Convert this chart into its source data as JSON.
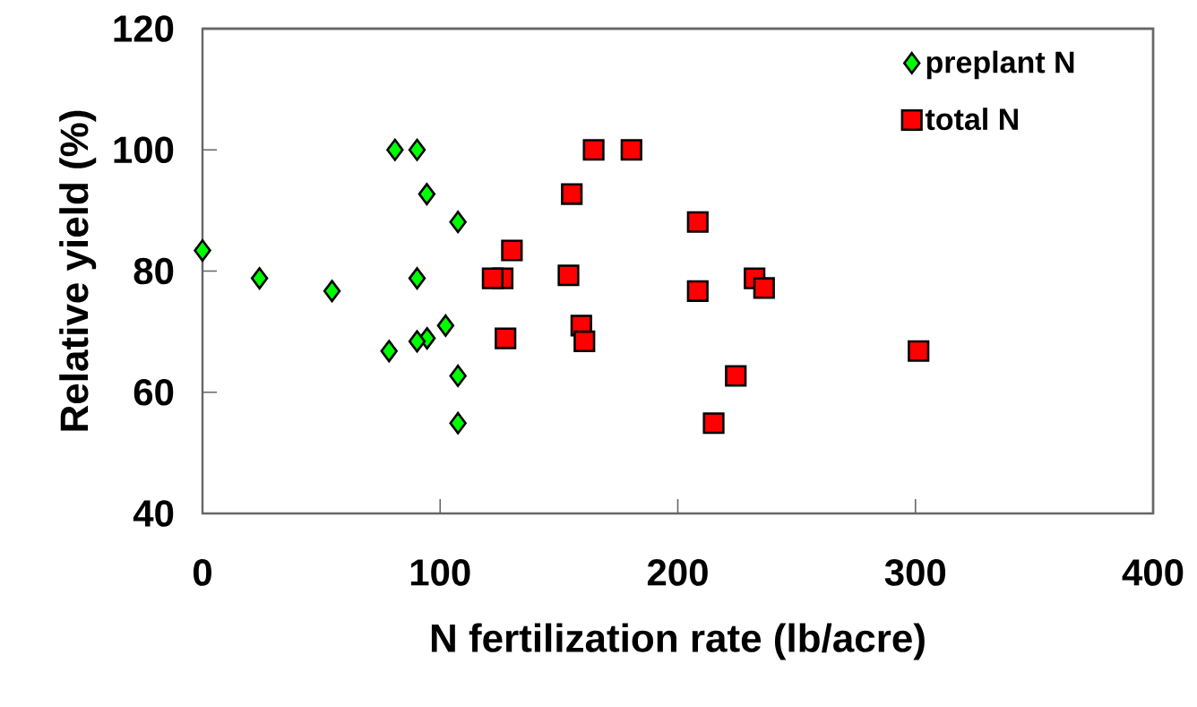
{
  "chart_data": {
    "type": "scatter",
    "xlabel": "N fertilization rate (lb/acre)",
    "ylabel": "Relative yield (%)",
    "xlim": [
      0,
      400
    ],
    "ylim": [
      40,
      120
    ],
    "xticks": [
      0,
      100,
      200,
      300,
      400
    ],
    "yticks": [
      40,
      60,
      80,
      100,
      120
    ],
    "grid": false,
    "legend": "top right",
    "series": [
      {
        "name": "preplant N",
        "color": "#00ff00",
        "marker": "diamond",
        "x": [
          81.0,
          90.3,
          94.4,
          107.5,
          0,
          24.0,
          54.5,
          90.3,
          102.3,
          94.5,
          90.3,
          78.5,
          107.5,
          107.5
        ],
        "values": [
          100,
          100,
          92.7,
          88.1,
          83.4,
          78.8,
          76.7,
          78.8,
          71.0,
          68.9,
          68.4,
          66.8,
          62.7,
          54.9
        ]
      },
      {
        "name": "total N",
        "color": "#ff0000",
        "marker": "square",
        "x": [
          130.2,
          126.3,
          122.1,
          127.5,
          164.6,
          180.5,
          155.4,
          208.4,
          154.0,
          208.4,
          232.3,
          236.3,
          159.4,
          160.7,
          224.4,
          215.1,
          301.3
        ],
        "values": [
          83.4,
          78.8,
          78.8,
          68.9,
          100,
          100,
          92.7,
          88.1,
          79.3,
          76.7,
          78.8,
          77.2,
          71.0,
          68.4,
          62.7,
          54.9,
          66.8
        ]
      }
    ]
  }
}
